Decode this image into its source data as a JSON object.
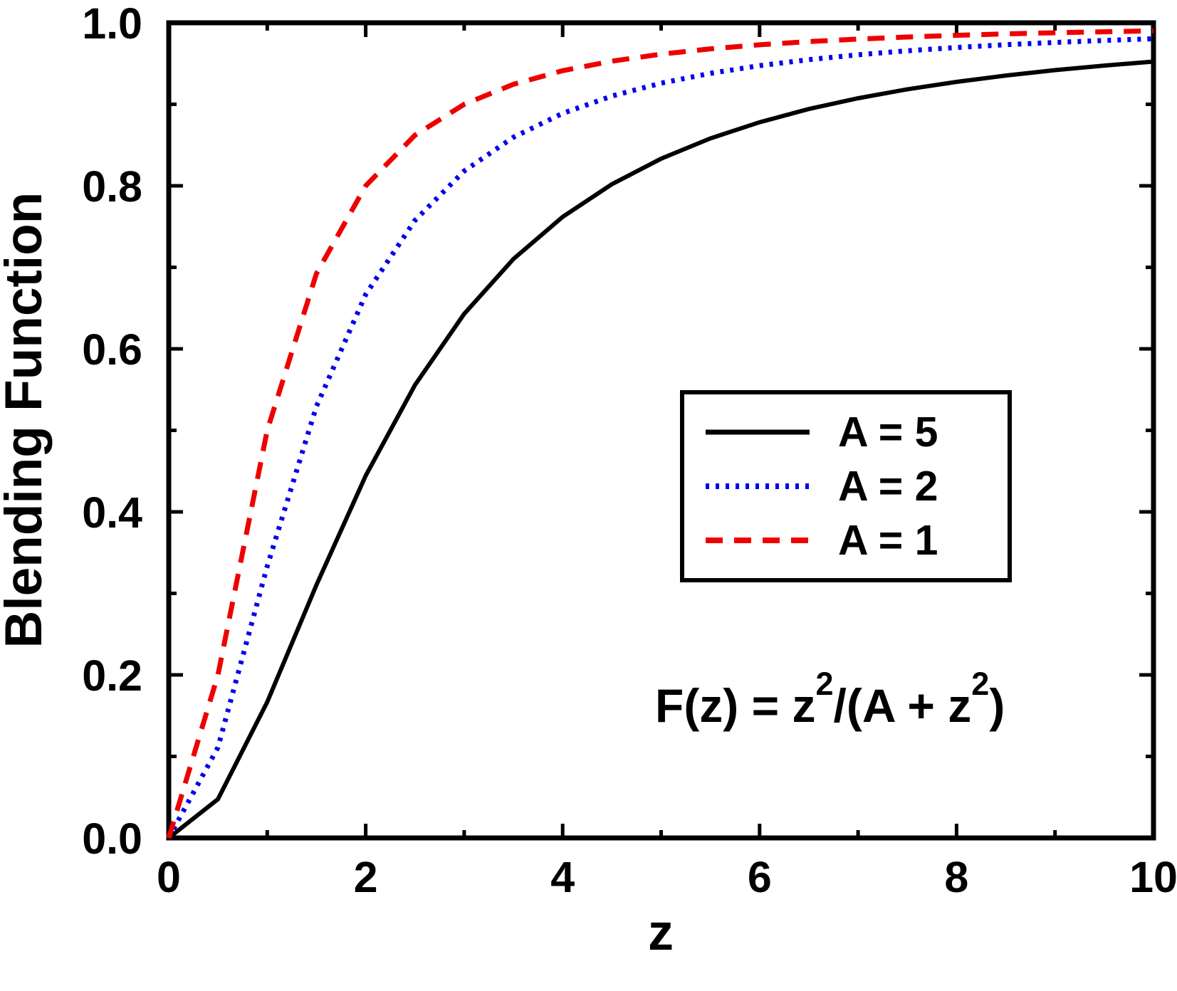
{
  "chart_data": {
    "type": "line",
    "title": "",
    "xlabel": "z",
    "ylabel": "Blending Function",
    "xlim": [
      0,
      10
    ],
    "ylim": [
      0.0,
      1.0
    ],
    "grid": false,
    "legend_position": "center-right inside plot, framed box",
    "annotation": "F(z) = z²/(A + z²)",
    "x_axis": {
      "major_ticks": [
        0,
        2,
        4,
        6,
        8,
        10
      ],
      "minor_ticks": [
        1,
        3,
        5,
        7,
        9
      ],
      "tick_labels": [
        "0",
        "2",
        "4",
        "6",
        "8",
        "10"
      ]
    },
    "y_axis": {
      "major_ticks": [
        0.0,
        0.2,
        0.4,
        0.6,
        0.8,
        1.0
      ],
      "minor_ticks": [
        0.1,
        0.3,
        0.5,
        0.7,
        0.9
      ],
      "tick_labels": [
        "0.0",
        "0.2",
        "0.4",
        "0.6",
        "0.8",
        "1.0"
      ]
    },
    "x": [
      0,
      0.5,
      1,
      1.5,
      2,
      2.5,
      3,
      3.5,
      4,
      4.5,
      5,
      5.5,
      6,
      6.5,
      7,
      7.5,
      8,
      8.5,
      9,
      9.5,
      10
    ],
    "series": [
      {
        "name": "A = 5",
        "color": "#000000",
        "style": "solid",
        "values": [
          0,
          0.0476,
          0.1667,
          0.3103,
          0.4444,
          0.5556,
          0.6429,
          0.7101,
          0.7619,
          0.802,
          0.8333,
          0.8582,
          0.878,
          0.8942,
          0.9074,
          0.9184,
          0.9275,
          0.9353,
          0.9419,
          0.9475,
          0.9524
        ]
      },
      {
        "name": "A = 2",
        "color": "#0000ee",
        "style": "dotted",
        "values": [
          0,
          0.1111,
          0.3333,
          0.5294,
          0.6667,
          0.7576,
          0.8182,
          0.8596,
          0.8889,
          0.9101,
          0.9259,
          0.938,
          0.9474,
          0.9548,
          0.9608,
          0.9657,
          0.9697,
          0.9731,
          0.9759,
          0.9783,
          0.9804
        ]
      },
      {
        "name": "A = 1",
        "color": "#ee0000",
        "style": "dashed",
        "values": [
          0,
          0.2,
          0.5,
          0.6923,
          0.8,
          0.8621,
          0.9,
          0.9245,
          0.9412,
          0.9529,
          0.9615,
          0.968,
          0.973,
          0.9769,
          0.98,
          0.9825,
          0.9846,
          0.9864,
          0.9878,
          0.989,
          0.9901
        ]
      }
    ]
  },
  "formula": {
    "parts": [
      {
        "t": "F(z) = z"
      },
      {
        "t": "2",
        "sup": true
      },
      {
        "t": "/(A + z"
      },
      {
        "t": "2",
        "sup": true
      },
      {
        "t": ")"
      }
    ]
  }
}
